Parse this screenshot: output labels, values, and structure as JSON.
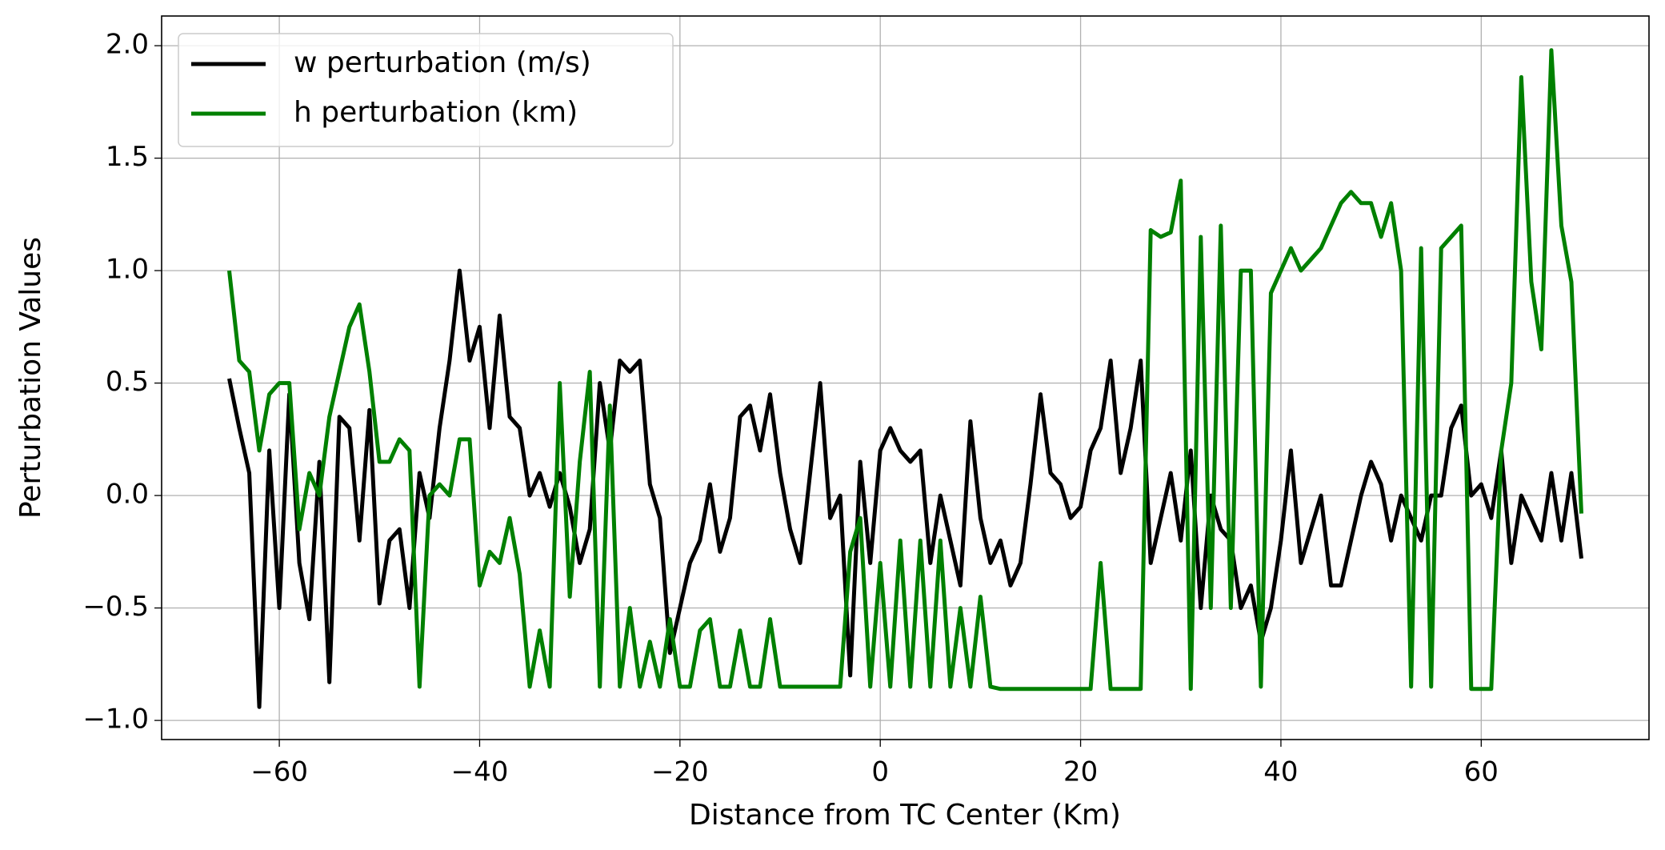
{
  "chart_data": {
    "type": "line",
    "xlabel": "Distance from TC Center (Km)",
    "ylabel": "Perturbation Values",
    "x": [
      -65,
      -64,
      -63,
      -62,
      -61,
      -60,
      -59,
      -58,
      -57,
      -56,
      -55,
      -54,
      -53,
      -52,
      -51,
      -50,
      -49,
      -48,
      -47,
      -46,
      -45,
      -44,
      -43,
      -42,
      -41,
      -40,
      -39,
      -38,
      -37,
      -36,
      -35,
      -34,
      -33,
      -32,
      -31,
      -30,
      -29,
      -28,
      -27,
      -26,
      -25,
      -24,
      -23,
      -22,
      -21,
      -20,
      -19,
      -18,
      -17,
      -16,
      -15,
      -14,
      -13,
      -12,
      -11,
      -10,
      -9,
      -8,
      -7,
      -6,
      -5,
      -4,
      -3,
      -2,
      -1,
      0,
      1,
      2,
      3,
      4,
      5,
      6,
      7,
      8,
      9,
      10,
      11,
      12,
      13,
      14,
      15,
      16,
      17,
      18,
      19,
      20,
      21,
      22,
      23,
      24,
      25,
      26,
      27,
      28,
      29,
      30,
      31,
      32,
      33,
      34,
      35,
      36,
      37,
      38,
      39,
      40,
      41,
      42,
      43,
      44,
      45,
      46,
      47,
      48,
      49,
      50,
      51,
      52,
      53,
      54,
      55,
      56,
      57,
      58,
      59,
      60,
      61,
      62,
      63,
      64,
      65,
      66,
      67,
      68,
      69,
      70
    ],
    "series": [
      {
        "name": "w perturbation (m/s)",
        "color": "#000000",
        "values": [
          0.52,
          0.3,
          0.1,
          -0.94,
          0.2,
          -0.5,
          0.45,
          -0.3,
          -0.55,
          0.15,
          -0.83,
          0.35,
          0.3,
          -0.2,
          0.38,
          -0.48,
          -0.2,
          -0.15,
          -0.5,
          0.1,
          -0.1,
          0.3,
          0.6,
          1.0,
          0.6,
          0.75,
          0.3,
          0.8,
          0.35,
          0.3,
          0.0,
          0.1,
          -0.05,
          0.1,
          -0.05,
          -0.3,
          -0.15,
          0.5,
          0.2,
          0.6,
          0.55,
          0.6,
          0.05,
          -0.1,
          -0.7,
          -0.5,
          -0.3,
          -0.2,
          0.05,
          -0.25,
          -0.1,
          0.35,
          0.4,
          0.2,
          0.45,
          0.1,
          -0.15,
          -0.3,
          0.1,
          0.5,
          -0.1,
          0.0,
          -0.8,
          0.15,
          -0.3,
          0.2,
          0.3,
          0.2,
          0.15,
          0.2,
          -0.3,
          0.0,
          -0.2,
          -0.4,
          0.33,
          -0.1,
          -0.3,
          -0.2,
          -0.4,
          -0.3,
          0.05,
          0.45,
          0.1,
          0.05,
          -0.1,
          -0.05,
          0.2,
          0.3,
          0.6,
          0.1,
          0.3,
          0.6,
          -0.3,
          -0.1,
          0.1,
          -0.2,
          0.2,
          -0.5,
          0.0,
          -0.15,
          -0.2,
          -0.5,
          -0.4,
          -0.65,
          -0.5,
          -0.2,
          0.2,
          -0.3,
          -0.15,
          0.0,
          -0.4,
          -0.4,
          -0.2,
          0.0,
          0.15,
          0.05,
          -0.2,
          0.0,
          -0.1,
          -0.2,
          0.0,
          0.0,
          0.3,
          0.4,
          0.0,
          0.05,
          -0.1,
          0.2,
          -0.3,
          0.0,
          -0.1,
          -0.2,
          0.1,
          -0.2,
          0.1,
          -0.28
        ]
      },
      {
        "name": "h perturbation (km)",
        "color": "#008000",
        "values": [
          1.0,
          0.6,
          0.55,
          0.2,
          0.45,
          0.5,
          0.5,
          -0.15,
          0.1,
          0.0,
          0.35,
          0.55,
          0.75,
          0.85,
          0.55,
          0.15,
          0.15,
          0.25,
          0.2,
          -0.85,
          0.0,
          0.05,
          0.0,
          0.25,
          0.25,
          -0.4,
          -0.25,
          -0.3,
          -0.1,
          -0.35,
          -0.85,
          -0.6,
          -0.85,
          0.5,
          -0.45,
          0.15,
          0.55,
          -0.85,
          0.4,
          -0.85,
          -0.5,
          -0.85,
          -0.65,
          -0.85,
          -0.55,
          -0.85,
          -0.85,
          -0.6,
          -0.55,
          -0.85,
          -0.85,
          -0.6,
          -0.85,
          -0.85,
          -0.55,
          -0.85,
          -0.85,
          -0.85,
          -0.85,
          -0.85,
          -0.85,
          -0.85,
          -0.25,
          -0.1,
          -0.85,
          -0.3,
          -0.85,
          -0.2,
          -0.85,
          -0.2,
          -0.85,
          -0.2,
          -0.85,
          -0.5,
          -0.85,
          -0.45,
          -0.85,
          -0.86,
          -0.86,
          -0.86,
          -0.86,
          -0.86,
          -0.86,
          -0.86,
          -0.86,
          -0.86,
          -0.86,
          -0.3,
          -0.86,
          -0.86,
          -0.86,
          -0.86,
          1.18,
          1.15,
          1.17,
          1.4,
          -0.86,
          1.15,
          -0.5,
          1.2,
          -0.5,
          1.0,
          1.0,
          -0.85,
          0.9,
          1.0,
          1.1,
          1.0,
          1.05,
          1.1,
          1.2,
          1.3,
          1.35,
          1.3,
          1.3,
          1.15,
          1.3,
          1.0,
          -0.85,
          1.1,
          -0.85,
          1.1,
          1.15,
          1.2,
          -0.86,
          -0.86,
          -0.86,
          0.2,
          0.5,
          1.86,
          0.95,
          0.65,
          1.98,
          1.2,
          0.95,
          -0.08
        ]
      }
    ],
    "xlim": [
      -71.75,
      76.75
    ],
    "ylim": [
      -1.085,
      2.132
    ],
    "xticks": [
      {
        "value": -60,
        "label": "−60"
      },
      {
        "value": -40,
        "label": "−40"
      },
      {
        "value": -20,
        "label": "−20"
      },
      0,
      20,
      40,
      60
    ],
    "yticks": [
      {
        "value": -1.0,
        "label": "−1.0"
      },
      {
        "value": -0.5,
        "label": "−0.5"
      },
      {
        "value": 0.0,
        "label": "0.0"
      },
      0.5,
      {
        "value": 1.0,
        "label": "1.0"
      },
      1.5,
      {
        "value": 2.0,
        "label": "2.0"
      }
    ],
    "grid": true,
    "legend": "upper-left"
  }
}
